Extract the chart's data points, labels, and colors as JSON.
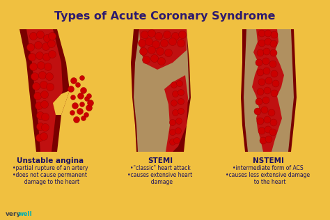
{
  "title": "Types of Acute Coronary Syndrome",
  "title_color": "#2e1a6e",
  "background_color": "#f0c040",
  "artery_dark_red": "#7a0000",
  "artery_red": "#c01010",
  "bright_red": "#e01010",
  "plaque_color": "#b09060",
  "dot_color": "#cc0000",
  "dot_edge_color": "#990000",
  "labels": [
    "Unstable angina",
    "STEMI",
    "NSTEMI"
  ],
  "label_color": "#1a1060",
  "desc": [
    [
      "•partial rupture of an artery",
      "•does not cause permanent",
      "  damage to the heart"
    ],
    [
      "•\"classic\" heart attack",
      "•causes extensive heart",
      "  damage"
    ],
    [
      "•intermediate form of ACS",
      "•causes less extensive damage",
      "  to the heart"
    ]
  ],
  "watermark_color1": "#444444",
  "watermark_color2": "#00b0b0"
}
